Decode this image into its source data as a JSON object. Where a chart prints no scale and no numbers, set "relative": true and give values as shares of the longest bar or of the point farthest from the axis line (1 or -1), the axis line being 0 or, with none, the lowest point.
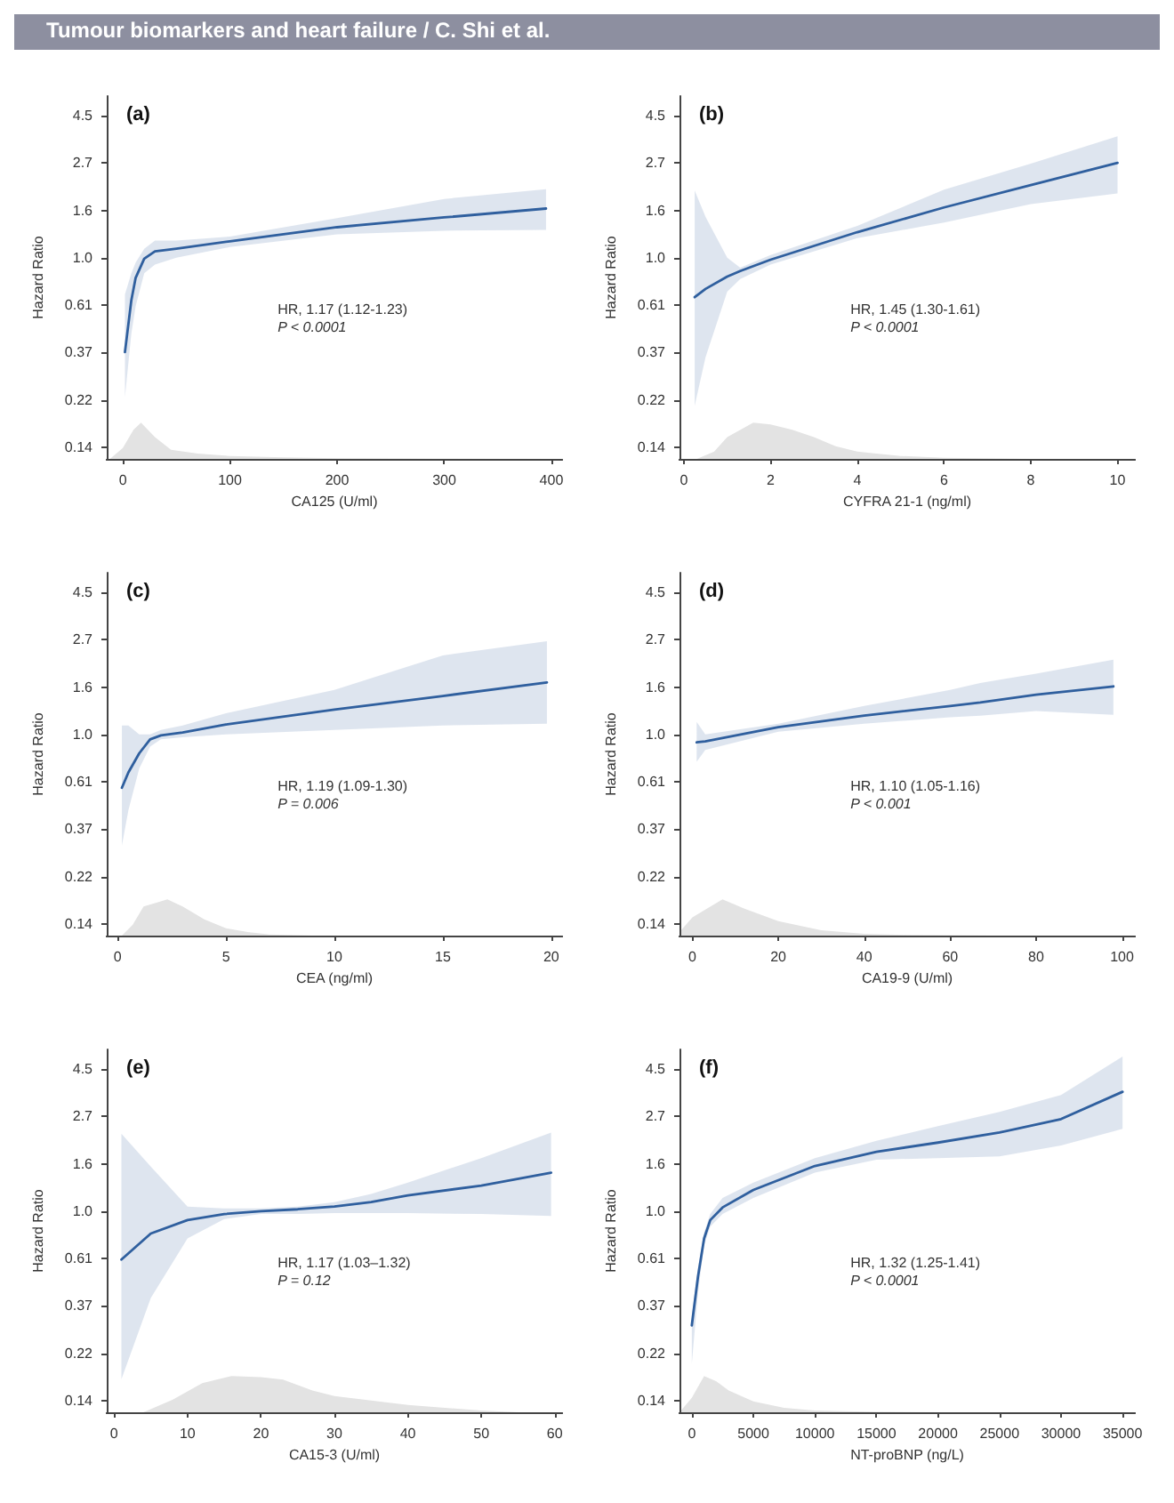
{
  "chart_data": [
    {
      "type": "line",
      "title": "(a)",
      "xlabel": "CA125 (U/ml)",
      "ylabel": "Hazard Ratio",
      "annotations": [
        "HR, 1.17 (1.12-1.23)",
        "P < 0.0001",
        "Tumour biomarkers and heart failure  /  C. Shi et al."
      ],
      "log": "y",
      "tick_labels": "y",
      "xlim": [
        -15,
        410
      ],
      "ylim": [
        0.12,
        5.5
      ],
      "yticks": [
        {
          "value": 0.1353,
          "label": "0.14"
        },
        {
          "value": 0.2231,
          "label": "0.22"
        },
        {
          "value": 0.3679,
          "label": "0.37"
        },
        {
          "value": 0.6065,
          "label": "0.61"
        },
        {
          "value": 1,
          "label": "1.0"
        },
        {
          "value": 1.6487,
          "label": "1.6"
        },
        {
          "value": 2.7183,
          "label": "2.7"
        },
        {
          "value": 4.4817,
          "label": "4.5"
        }
      ],
      "grid": false,
      "marker": "none",
      "series": [
        {
          "color": "#2f5f9e",
          "x": [
            2,
            8,
            12,
            20,
            30,
            50,
            100,
            200,
            300,
            395
          ],
          "values": [
            0.37,
            0.64,
            0.81,
            0.99,
            1.07,
            1.1,
            1.19,
            1.38,
            1.53,
            1.68
          ],
          "lower": [
            0.23,
            0.45,
            0.6,
            0.85,
            0.93,
            1.0,
            1.12,
            1.28,
            1.33,
            1.34
          ],
          "upper": [
            0.68,
            0.85,
            0.95,
            1.1,
            1.2,
            1.2,
            1.25,
            1.52,
            1.86,
            2.06
          ]
        }
      ]
    },
    {
      "type": "area",
      "relative": true,
      "tick_labels": "x",
      "xlim": [
        -15,
        410
      ],
      "xticks": [
        0,
        100,
        200,
        300,
        400
      ],
      "color": "#e3e3e3",
      "x": [
        -12,
        0,
        10,
        17,
        30,
        45,
        70,
        100,
        150,
        200,
        300,
        400
      ],
      "values": [
        0,
        0.3,
        0.8,
        1,
        0.6,
        0.25,
        0.15,
        0.08,
        0.04,
        0.02,
        0.005,
        0
      ]
    },
    {
      "type": "line",
      "title": "(b)",
      "xlabel": "CYFRA 21-1 (ng/ml)",
      "ylabel": "Hazard Ratio",
      "annotations": [
        "HR, 1.45 (1.30-1.61)",
        "P < 0.0001"
      ],
      "log": "y",
      "tick_labels": "y",
      "xlim": [
        -0.1,
        10.4
      ],
      "ylim": [
        0.12,
        5.5
      ],
      "yticks": [
        {
          "value": 0.1353,
          "label": "0.14"
        },
        {
          "value": 0.2231,
          "label": "0.22"
        },
        {
          "value": 0.3679,
          "label": "0.37"
        },
        {
          "value": 0.6065,
          "label": "0.61"
        },
        {
          "value": 1,
          "label": "1.0"
        },
        {
          "value": 1.6487,
          "label": "1.6"
        },
        {
          "value": 2.7183,
          "label": "2.7"
        },
        {
          "value": 4.4817,
          "label": "4.5"
        }
      ],
      "grid": false,
      "marker": "none",
      "series": [
        {
          "color": "#2f5f9e",
          "x": [
            0.25,
            0.5,
            1,
            1.3,
            2,
            4,
            6,
            8,
            10
          ],
          "values": [
            0.66,
            0.72,
            0.82,
            0.87,
            0.98,
            1.31,
            1.7,
            2.15,
            2.72
          ],
          "lower": [
            0.21,
            0.35,
            0.7,
            0.8,
            0.93,
            1.23,
            1.45,
            1.76,
            1.97
          ],
          "upper": [
            2.03,
            1.54,
            1.0,
            0.9,
            1.03,
            1.4,
            2.05,
            2.7,
            3.6
          ]
        }
      ]
    },
    {
      "type": "area",
      "relative": true,
      "tick_labels": "x",
      "xlim": [
        -0.1,
        10.4
      ],
      "xticks": [
        0,
        2,
        4,
        6,
        8,
        10
      ],
      "color": "#e3e3e3",
      "x": [
        0.3,
        0.7,
        1,
        1.6,
        2,
        2.5,
        3,
        3.5,
        4,
        5,
        6,
        8
      ],
      "values": [
        0,
        0.2,
        0.6,
        1,
        0.95,
        0.8,
        0.6,
        0.35,
        0.2,
        0.08,
        0.03,
        0
      ]
    },
    {
      "type": "line",
      "title": "(c)",
      "xlabel": "CEA (ng/ml)",
      "ylabel": "Hazard Ratio",
      "annotations": [
        "HR, 1.19 (1.09-1.30)",
        "P = 0.006"
      ],
      "log": "y",
      "tick_labels": "y",
      "xlim": [
        -0.5,
        20.5
      ],
      "ylim": [
        0.12,
        5.5
      ],
      "yticks": [
        {
          "value": 0.1353,
          "label": "0.14"
        },
        {
          "value": 0.2231,
          "label": "0.22"
        },
        {
          "value": 0.3679,
          "label": "0.37"
        },
        {
          "value": 0.6065,
          "label": "0.61"
        },
        {
          "value": 1,
          "label": "1.0"
        },
        {
          "value": 1.6487,
          "label": "1.6"
        },
        {
          "value": 2.7183,
          "label": "2.7"
        },
        {
          "value": 4.4817,
          "label": "4.5"
        }
      ],
      "grid": false,
      "marker": "none",
      "series": [
        {
          "color": "#2f5f9e",
          "x": [
            0.2,
            0.5,
            1,
            1.5,
            2,
            3,
            5,
            10,
            15,
            19.8
          ],
          "values": [
            0.57,
            0.67,
            0.82,
            0.95,
            0.99,
            1.02,
            1.11,
            1.3,
            1.5,
            1.73
          ],
          "lower": [
            0.31,
            0.45,
            0.7,
            0.88,
            0.95,
            0.97,
            1.0,
            1.05,
            1.1,
            1.12
          ],
          "upper": [
            1.1,
            1.1,
            1.0,
            1.0,
            1.05,
            1.1,
            1.25,
            1.6,
            2.3,
            2.67
          ]
        }
      ]
    },
    {
      "type": "area",
      "relative": true,
      "tick_labels": "x",
      "xlim": [
        -0.5,
        20.5
      ],
      "xticks": [
        0,
        5,
        10,
        15,
        20
      ],
      "color": "#e3e3e3",
      "x": [
        0.2,
        0.7,
        1.2,
        2.3,
        3,
        4,
        5,
        6,
        7,
        9
      ],
      "values": [
        0,
        0.3,
        0.8,
        1,
        0.8,
        0.45,
        0.2,
        0.1,
        0.03,
        0
      ]
    },
    {
      "type": "line",
      "title": "(d)",
      "xlabel": "CA19-9 (U/ml)",
      "ylabel": "Hazard Ratio",
      "annotations": [
        "HR, 1.10 (1.05-1.16)",
        "P < 0.001"
      ],
      "log": "y",
      "tick_labels": "y",
      "xlim": [
        -3,
        103
      ],
      "ylim": [
        0.12,
        5.5
      ],
      "yticks": [
        {
          "value": 0.1353,
          "label": "0.14"
        },
        {
          "value": 0.2231,
          "label": "0.22"
        },
        {
          "value": 0.3679,
          "label": "0.37"
        },
        {
          "value": 0.6065,
          "label": "0.61"
        },
        {
          "value": 1,
          "label": "1.0"
        },
        {
          "value": 1.6487,
          "label": "1.6"
        },
        {
          "value": 2.7183,
          "label": "2.7"
        },
        {
          "value": 4.4817,
          "label": "4.5"
        }
      ],
      "grid": false,
      "marker": "none",
      "series": [
        {
          "color": "#2f5f9e",
          "x": [
            1,
            3,
            20,
            40,
            60,
            67,
            80,
            98
          ],
          "values": [
            0.92,
            0.93,
            1.08,
            1.22,
            1.35,
            1.4,
            1.52,
            1.66
          ],
          "lower": [
            0.75,
            0.85,
            1.03,
            1.12,
            1.2,
            1.22,
            1.28,
            1.23
          ],
          "upper": [
            1.14,
            1.0,
            1.12,
            1.35,
            1.6,
            1.72,
            1.9,
            2.2
          ]
        }
      ]
    },
    {
      "type": "area",
      "relative": true,
      "tick_labels": "x",
      "xlim": [
        -3,
        103
      ],
      "xticks": [
        0,
        20,
        40,
        60,
        80,
        100
      ],
      "color": "#e3e3e3",
      "x": [
        -3,
        0,
        7,
        12,
        20,
        30,
        40,
        50,
        70
      ],
      "values": [
        0.1,
        0.5,
        1,
        0.75,
        0.4,
        0.15,
        0.05,
        0.02,
        0
      ]
    },
    {
      "type": "line",
      "title": "(e)",
      "xlabel": "CA15-3 (U/ml)",
      "ylabel": "Hazard Ratio",
      "annotations": [
        "HR, 1.17 (1.03–1.32)",
        "P = 0.12"
      ],
      "log": "y",
      "tick_labels": "y",
      "xlim": [
        -1,
        61
      ],
      "ylim": [
        0.12,
        5.5
      ],
      "yticks": [
        {
          "value": 0.1353,
          "label": "0.14"
        },
        {
          "value": 0.2231,
          "label": "0.22"
        },
        {
          "value": 0.3679,
          "label": "0.37"
        },
        {
          "value": 0.6065,
          "label": "0.61"
        },
        {
          "value": 1,
          "label": "1.0"
        },
        {
          "value": 1.6487,
          "label": "1.6"
        },
        {
          "value": 2.7183,
          "label": "2.7"
        },
        {
          "value": 4.4817,
          "label": "4.5"
        }
      ],
      "grid": false,
      "marker": "none",
      "series": [
        {
          "color": "#2f5f9e",
          "x": [
            1,
            5,
            10,
            15,
            20,
            25,
            30,
            35,
            40,
            50,
            59.5
          ],
          "values": [
            0.6,
            0.79,
            0.91,
            0.97,
            1.0,
            1.02,
            1.05,
            1.1,
            1.18,
            1.31,
            1.5
          ],
          "lower": [
            0.17,
            0.4,
            0.75,
            0.92,
            0.97,
            0.97,
            0.98,
            0.98,
            0.98,
            0.97,
            0.95
          ],
          "upper": [
            2.26,
            1.6,
            1.05,
            1.03,
            1.03,
            1.05,
            1.1,
            1.2,
            1.35,
            1.75,
            2.29
          ]
        }
      ]
    },
    {
      "type": "area",
      "relative": true,
      "tick_labels": "x",
      "xlim": [
        -1,
        61
      ],
      "xticks": [
        0,
        10,
        20,
        30,
        40,
        50,
        60
      ],
      "color": "#e3e3e3",
      "x": [
        4,
        8,
        12,
        16,
        20,
        23,
        27,
        30,
        40,
        50,
        55
      ],
      "values": [
        0,
        0.35,
        0.8,
        1,
        0.97,
        0.9,
        0.6,
        0.45,
        0.2,
        0.05,
        0
      ]
    },
    {
      "type": "line",
      "title": "(f)",
      "xlabel": "NT-proBNP (ng/L)",
      "ylabel": "Hazard Ratio",
      "annotations": [
        "HR, 1.32 (1.25-1.41)",
        "P < 0.0001"
      ],
      "log": "y",
      "tick_labels": "y",
      "xlim": [
        -1000,
        36000
      ],
      "ylim": [
        0.12,
        5.5
      ],
      "yticks": [
        {
          "value": 0.1353,
          "label": "0.14"
        },
        {
          "value": 0.2231,
          "label": "0.22"
        },
        {
          "value": 0.3679,
          "label": "0.37"
        },
        {
          "value": 0.6065,
          "label": "0.61"
        },
        {
          "value": 1,
          "label": "1.0"
        },
        {
          "value": 1.6487,
          "label": "1.6"
        },
        {
          "value": 2.7183,
          "label": "2.7"
        },
        {
          "value": 4.4817,
          "label": "4.5"
        }
      ],
      "grid": false,
      "marker": "none",
      "series": [
        {
          "color": "#2f5f9e",
          "x": [
            0,
            500,
            1000,
            1500,
            2500,
            5000,
            10000,
            15000,
            20000,
            25000,
            30000,
            35000
          ],
          "values": [
            0.3,
            0.5,
            0.75,
            0.91,
            1.04,
            1.25,
            1.61,
            1.87,
            2.06,
            2.29,
            2.64,
            3.52
          ],
          "lower": [
            0.2,
            0.42,
            0.7,
            0.85,
            0.97,
            1.15,
            1.5,
            1.72,
            1.75,
            1.78,
            2.0,
            2.38
          ],
          "upper": [
            0.33,
            0.55,
            0.8,
            0.97,
            1.15,
            1.35,
            1.75,
            2.1,
            2.45,
            2.85,
            3.4,
            5.1
          ]
        }
      ]
    },
    {
      "type": "area",
      "relative": true,
      "tick_labels": "x",
      "xlim": [
        -1000,
        36000
      ],
      "xticks": [
        0,
        5000,
        10000,
        15000,
        20000,
        25000,
        30000,
        35000
      ],
      "color": "#e3e3e3",
      "x": [
        -1000,
        0,
        1000,
        2000,
        3000,
        5000,
        7500,
        10000,
        15000,
        20000
      ],
      "values": [
        0,
        0.4,
        1,
        0.85,
        0.6,
        0.3,
        0.12,
        0.05,
        0.01,
        0
      ]
    }
  ]
}
